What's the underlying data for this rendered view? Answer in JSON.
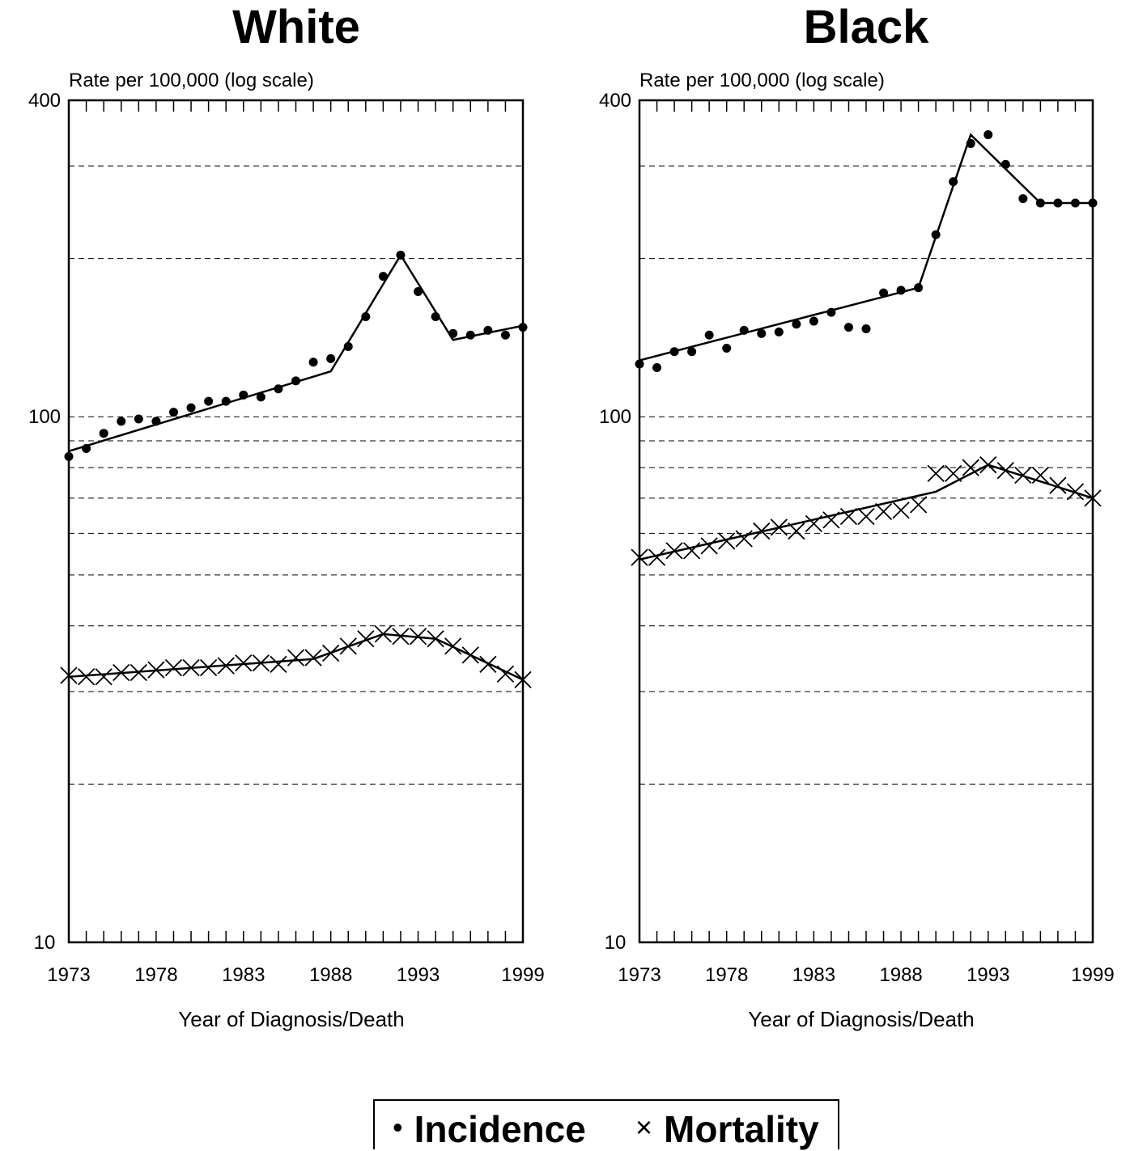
{
  "legend": {
    "incidence_symbol": "•",
    "incidence_label": "Incidence",
    "mortality_symbol": "×",
    "mortality_label": "Mortality"
  },
  "chart_data": [
    {
      "type": "scatter",
      "title": "White",
      "ylabel": "Rate per 100,000 (log scale)",
      "xlabel": "Year of Diagnosis/Death",
      "yscale": "log",
      "ylim": [
        10,
        400
      ],
      "xlim": [
        1973,
        1999
      ],
      "ytick_labels": [
        "400",
        "100",
        "10"
      ],
      "xtick_labels": [
        "1973",
        "1978",
        "1983",
        "1988",
        "1993",
        "1999"
      ],
      "grid": "dashed horizontal",
      "series": [
        {
          "name": "Incidence",
          "marker": "dot",
          "x": [
            1973,
            1974,
            1975,
            1976,
            1977,
            1978,
            1979,
            1980,
            1981,
            1982,
            1983,
            1984,
            1985,
            1986,
            1987,
            1988,
            1989,
            1990,
            1991,
            1992,
            1993,
            1994,
            1995,
            1996,
            1997,
            1998,
            1999
          ],
          "y": [
            84,
            87,
            93,
            98,
            99,
            98,
            102,
            104,
            107,
            107,
            110,
            109,
            113,
            117,
            127,
            129,
            136,
            155,
            185,
            203,
            173,
            155,
            144,
            143,
            146,
            143,
            148
          ],
          "trend": {
            "x": [
              1973,
              1988,
              1992,
              1995,
              1999
            ],
            "y": [
              86,
              122,
              203,
              140,
              149
            ]
          }
        },
        {
          "name": "Mortality",
          "marker": "x",
          "x": [
            1973,
            1974,
            1975,
            1976,
            1977,
            1978,
            1979,
            1980,
            1981,
            1982,
            1983,
            1984,
            1985,
            1986,
            1987,
            1988,
            1989,
            1990,
            1991,
            1992,
            1993,
            1994,
            1995,
            1996,
            1997,
            1998,
            1999
          ],
          "y": [
            32.2,
            32.0,
            32.0,
            32.6,
            32.6,
            33.0,
            33.3,
            33.3,
            33.3,
            33.6,
            34.0,
            34.0,
            33.8,
            34.8,
            34.8,
            35.5,
            36.6,
            37.8,
            38.6,
            38.2,
            38.2,
            37.8,
            36.6,
            35.2,
            33.8,
            32.4,
            31.6
          ],
          "trend": {
            "x": [
              1973,
              1987,
              1991,
              1994,
              1999
            ],
            "y": [
              32.0,
              34.6,
              38.6,
              37.8,
              31.6
            ]
          }
        }
      ]
    },
    {
      "type": "scatter",
      "title": "Black",
      "ylabel": "Rate per 100,000 (log scale)",
      "xlabel": "Year of Diagnosis/Death",
      "yscale": "log",
      "ylim": [
        10,
        400
      ],
      "xlim": [
        1973,
        1999
      ],
      "ytick_labels": [
        "400",
        "100",
        "10"
      ],
      "xtick_labels": [
        "1973",
        "1978",
        "1983",
        "1988",
        "1993",
        "1999"
      ],
      "grid": "dashed horizontal",
      "series": [
        {
          "name": "Incidence",
          "marker": "dot",
          "x": [
            1973,
            1974,
            1975,
            1976,
            1977,
            1978,
            1979,
            1980,
            1981,
            1982,
            1983,
            1984,
            1985,
            1986,
            1987,
            1988,
            1989,
            1990,
            1991,
            1992,
            1993,
            1994,
            1995,
            1996,
            1997,
            1998,
            1999
          ],
          "y": [
            126,
            124,
            133,
            133,
            143,
            135,
            146,
            144,
            145,
            150,
            152,
            158,
            148,
            147,
            172,
            174,
            176,
            222,
            280,
            331,
            344,
            302,
            260,
            255,
            255,
            255,
            255
          ],
          "trend": {
            "x": [
              1973,
              1989,
              1992,
              1996,
              1999
            ],
            "y": [
              128,
              176,
              344,
              255,
              255
            ]
          }
        },
        {
          "name": "Mortality",
          "marker": "x",
          "x": [
            1973,
            1974,
            1975,
            1976,
            1977,
            1978,
            1979,
            1980,
            1981,
            1982,
            1983,
            1984,
            1985,
            1986,
            1987,
            1988,
            1989,
            1990,
            1991,
            1992,
            1993,
            1994,
            1995,
            1996,
            1997,
            1998,
            1999
          ],
          "y": [
            54,
            54,
            55.6,
            55.6,
            56.8,
            58,
            58.6,
            60.6,
            61.6,
            60.6,
            62.6,
            63.6,
            64.6,
            64.6,
            66,
            66.4,
            68,
            78,
            78,
            80,
            81,
            79,
            77.4,
            77.4,
            74,
            72,
            70
          ],
          "trend": {
            "x": [
              1973,
              1990,
              1993,
              1999
            ],
            "y": [
              53.5,
              72,
              81,
              70
            ]
          }
        }
      ]
    }
  ]
}
